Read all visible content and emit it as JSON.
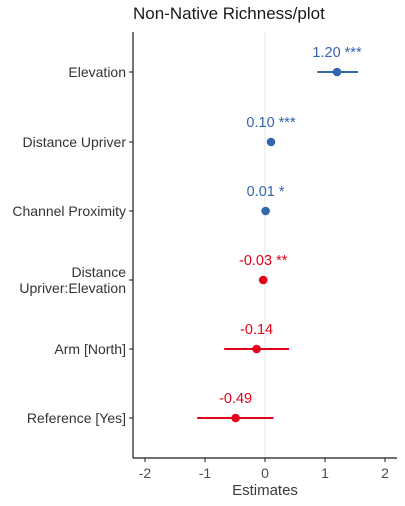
{
  "chart_data": {
    "type": "scatter",
    "title": "Non-Native Richness/plot",
    "xlabel": "Estimates",
    "xlim": [
      -2.2,
      2.2
    ],
    "xticks": [
      -2,
      -1,
      0,
      1,
      2
    ],
    "grid": "vertical line at 0",
    "terms": [
      {
        "label": [
          "Elevation"
        ],
        "estimate": 1.2,
        "ci": [
          0.87,
          1.55
        ],
        "estimate_label": "1.20 ***",
        "color": "#3366aa"
      },
      {
        "label": [
          "Distance Upriver"
        ],
        "estimate": 0.1,
        "ci": [
          0.07,
          0.13
        ],
        "estimate_label": "0.10 ***",
        "color": "#3366aa"
      },
      {
        "label": [
          "Channel Proximity"
        ],
        "estimate": 0.01,
        "ci": [
          0.0,
          0.02
        ],
        "estimate_label": "0.01 *",
        "color": "#3366aa"
      },
      {
        "label": [
          "Distance",
          "Upriver:Elevation"
        ],
        "estimate": -0.03,
        "ci": [
          -0.05,
          -0.01
        ],
        "estimate_label": "-0.03 **",
        "color": "#e3001b"
      },
      {
        "label": [
          "Arm [North]"
        ],
        "estimate": -0.14,
        "ci": [
          -0.68,
          0.4
        ],
        "estimate_label": "-0.14",
        "color": "#e3001b"
      },
      {
        "label": [
          "Reference [Yes]"
        ],
        "estimate": -0.49,
        "ci": [
          -1.13,
          0.14
        ],
        "estimate_label": "-0.49",
        "color": "#e3001b"
      }
    ]
  }
}
